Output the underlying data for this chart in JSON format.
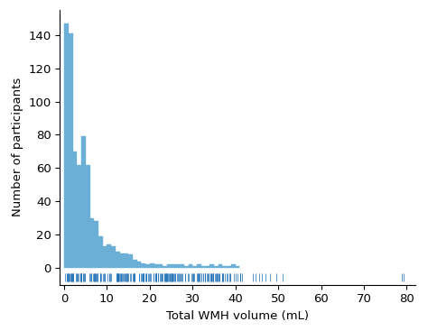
{
  "title": "",
  "xlabel": "Total WMH volume (mL)",
  "ylabel": "Number of participants",
  "bar_color": "#6baed6",
  "rug_color": "#2171b5",
  "xlim": [
    -1,
    82
  ],
  "ylim": [
    -10,
    155
  ],
  "xticks": [
    0,
    10,
    20,
    30,
    40,
    50,
    60,
    70,
    80
  ],
  "yticks": [
    0,
    20,
    40,
    60,
    80,
    100,
    120,
    140
  ],
  "bin_edges": [
    0,
    1,
    2,
    3,
    4,
    5,
    6,
    7,
    8,
    9,
    10,
    11,
    12,
    13,
    14,
    15,
    16,
    17,
    18,
    19,
    20,
    21,
    22,
    23,
    24,
    25,
    26,
    27,
    28,
    29,
    30,
    31,
    32,
    33,
    34,
    35,
    36,
    37,
    38,
    39,
    40,
    41
  ],
  "bin_heights": [
    147,
    141,
    70,
    62,
    79,
    62,
    30,
    28,
    19,
    13,
    14,
    13,
    10,
    9,
    9,
    8,
    5,
    4,
    3,
    2,
    3,
    2,
    2,
    1,
    2,
    2,
    2,
    2,
    1,
    2,
    1,
    2,
    1,
    1,
    2,
    1,
    2,
    1,
    1,
    2,
    1
  ],
  "background_color": "#ffffff",
  "font_size": 9.5,
  "ylabel_fontsize": 9.5,
  "xlabel_fontsize": 9.5
}
